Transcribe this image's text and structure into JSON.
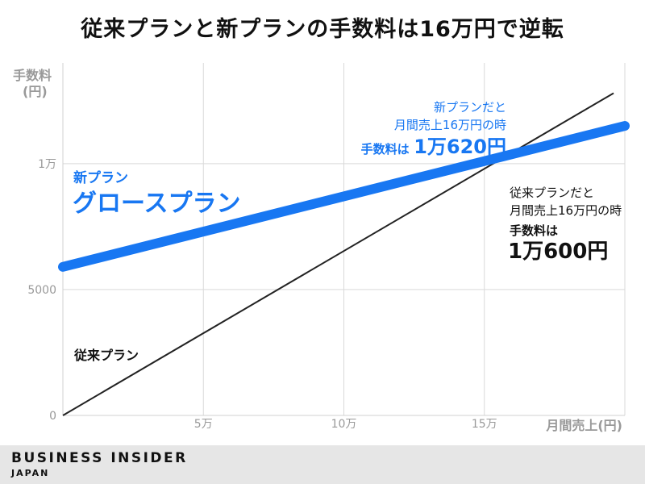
{
  "title": "従来プランと新プランの手数料は16万円で逆転",
  "colors": {
    "new_plan": "#1877f2",
    "old_plan": "#222222",
    "grid": "#d9d9d9",
    "footer_bg": "#e6e6e6"
  },
  "chart_data": {
    "type": "line",
    "title": "従来プランと新プランの手数料は16万円で逆転",
    "xlabel": "月間売上(円)",
    "ylabel_line1": "手数料",
    "ylabel_line2": "(円)",
    "xlim": [
      0,
      200000
    ],
    "ylim": [
      0,
      14000
    ],
    "x_ticks": [
      {
        "value": 50000,
        "label": "5万"
      },
      {
        "value": 100000,
        "label": "10万"
      },
      {
        "value": 150000,
        "label": "15万"
      }
    ],
    "y_ticks": [
      {
        "value": 0,
        "label": "0"
      },
      {
        "value": 5000,
        "label": "5000"
      },
      {
        "value": 10000,
        "label": "1万"
      }
    ],
    "grid": true,
    "series": [
      {
        "name": "従来プラン",
        "x": [
          0,
          196000
        ],
        "y": [
          0,
          12800
        ]
      },
      {
        "name": "新プラン グロースプラン",
        "x": [
          0,
          200000
        ],
        "y": [
          5900,
          11500
        ]
      }
    ],
    "annotations": {
      "new_plan_tag": "新プラン",
      "new_plan_name": "グロースプラン",
      "old_plan_name": "従来プラン",
      "new_callout_line1": "新プランだと",
      "new_callout_line2": "月間売上16万円の時",
      "new_callout_fee_label": "手数料は",
      "new_callout_fee_value": "1万620円",
      "old_callout_line1": "従来プランだと",
      "old_callout_line2": "月間売上16万円の時",
      "old_callout_fee_label": "手数料は",
      "old_callout_fee_value": "1万600円"
    }
  },
  "footer": {
    "brand": "BUSINESS INSIDER",
    "sub": "JAPAN"
  }
}
